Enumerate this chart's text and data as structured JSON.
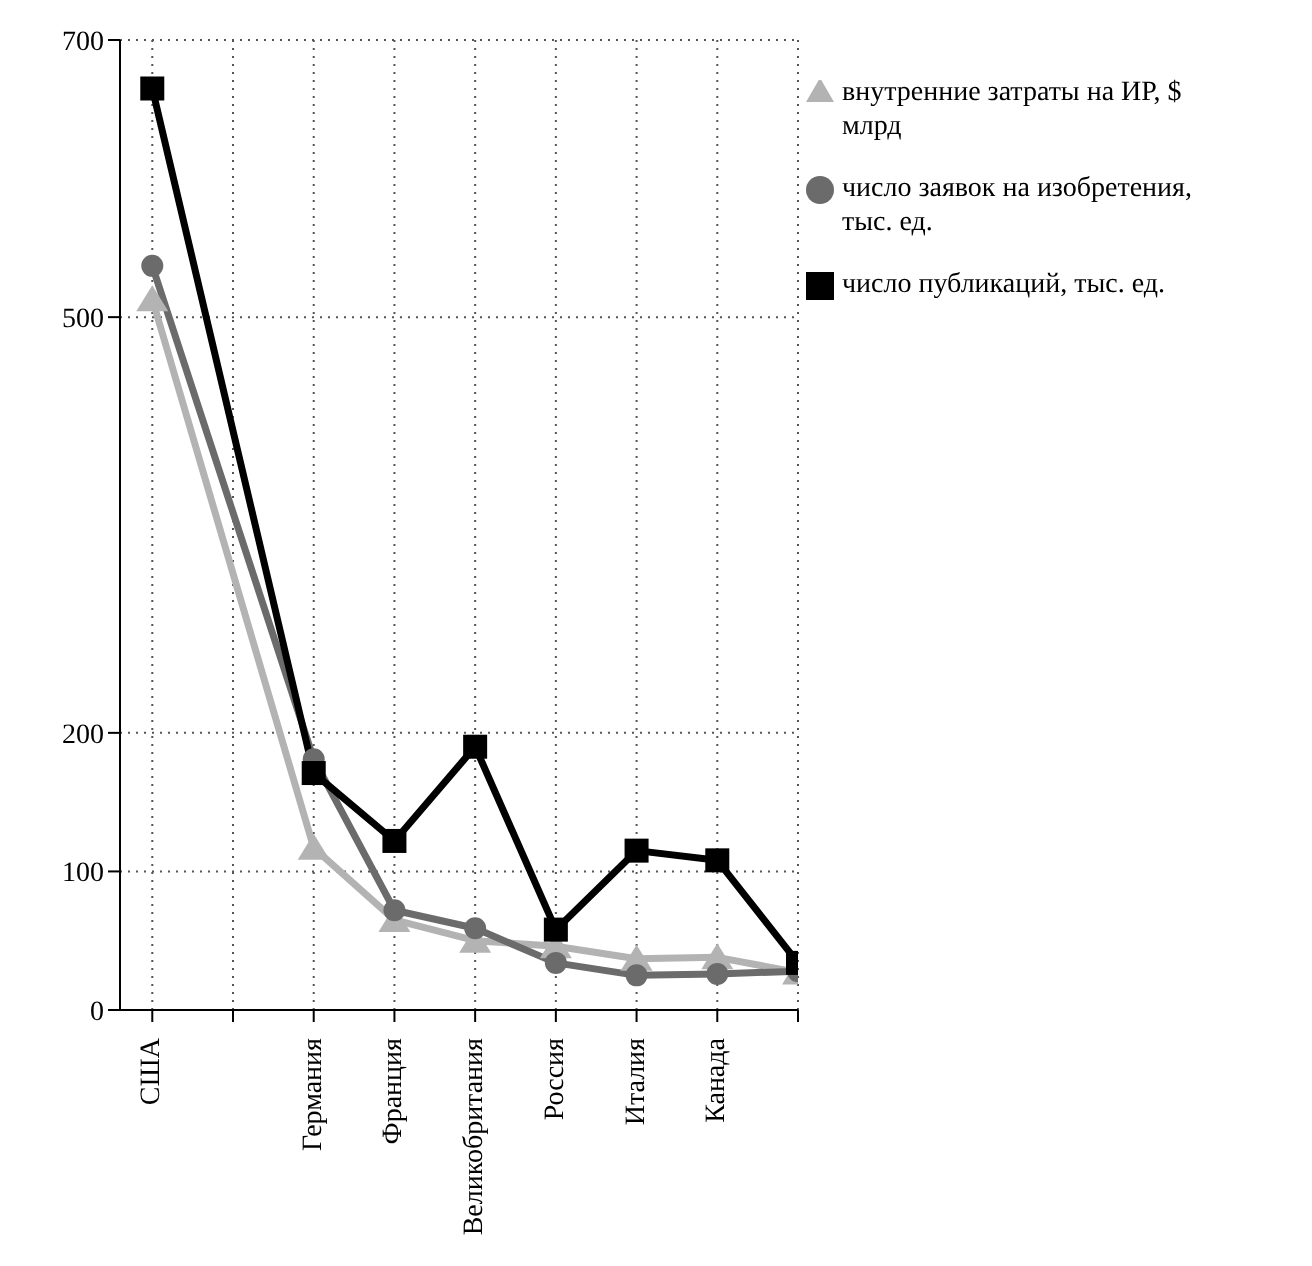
{
  "chart_data": {
    "type": "line",
    "categories": [
      "США",
      null,
      "Германия",
      "Франция",
      "Великобритания",
      "Россия",
      "Италия",
      "Канада",
      null
    ],
    "series": [
      {
        "name": "внутренние затраты на ИР, $ млрд",
        "color": "#b3b3b3",
        "marker": "triangle",
        "values": [
          513,
          null,
          117,
          65,
          50,
          46,
          37,
          38,
          27
        ]
      },
      {
        "name": "число заявок на изобретения, тыс. ед.",
        "color": "#6b6b6b",
        "marker": "circle",
        "values": [
          537,
          null,
          181,
          72,
          59,
          34,
          25,
          26,
          28
        ]
      },
      {
        "name": "число публикаций, тыс. ед.",
        "color": "#000000",
        "marker": "square",
        "values": [
          665,
          null,
          171,
          122,
          190,
          58,
          115,
          108,
          34
        ]
      }
    ],
    "ylim": [
      0,
      700
    ],
    "yticks": [
      0,
      100,
      200,
      500,
      700
    ],
    "grid": true,
    "legend": "top right",
    "line_style": "solid"
  }
}
